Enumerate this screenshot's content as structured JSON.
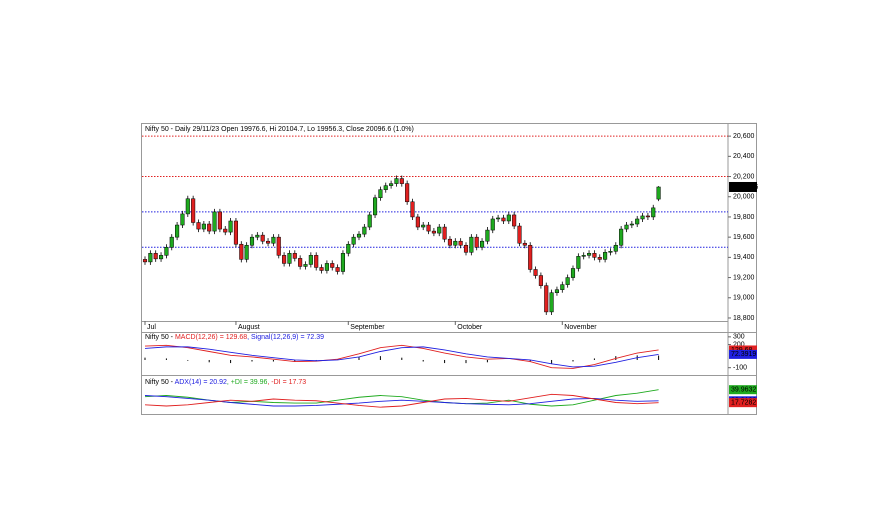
{
  "chart_data": [
    {
      "type": "candlestick",
      "title": "Nifty 50 - Daily 29/11/23 Open 19976.6, Hi 20104.7, Lo 19956.3, Close 20096.6 (1.0%)",
      "categories": [
        "Jul",
        null,
        null,
        null,
        null,
        null,
        null,
        null,
        null,
        null,
        null,
        null,
        null,
        null,
        null,
        null,
        null,
        "August",
        null,
        null,
        null,
        null,
        null,
        null,
        null,
        null,
        null,
        null,
        null,
        null,
        null,
        null,
        null,
        null,
        null,
        null,
        null,
        null,
        "September",
        null,
        null,
        null,
        null,
        null,
        null,
        null,
        null,
        null,
        null,
        null,
        null,
        null,
        null,
        null,
        null,
        null,
        null,
        null,
        "October",
        null,
        null,
        null,
        null,
        null,
        null,
        null,
        null,
        null,
        null,
        null,
        null,
        null,
        null,
        null,
        null,
        null,
        null,
        null,
        "November",
        null,
        null,
        null,
        null,
        null,
        null,
        null,
        null,
        null,
        null,
        null,
        null,
        null,
        null,
        null,
        null,
        null,
        null
      ],
      "open": [
        19380,
        19355,
        19440,
        19385,
        19420,
        19500,
        19600,
        19720,
        19830,
        19980,
        19745,
        19680,
        19730,
        19660,
        19850,
        19680,
        19650,
        19760,
        19530,
        19380,
        19520,
        19600,
        19620,
        19560,
        19540,
        19600,
        19420,
        19340,
        19440,
        19390,
        19310,
        19330,
        19420,
        19300,
        19270,
        19340,
        19300,
        19260,
        19440,
        19530,
        19600,
        19630,
        19700,
        19820,
        19990,
        20070,
        20110,
        20130,
        20180,
        20130,
        19950,
        19800,
        19700,
        19720,
        19660,
        19640,
        19700,
        19580,
        19520,
        19560,
        19520,
        19450,
        19600,
        19500,
        19560,
        19670,
        19780,
        19790,
        19760,
        19820,
        19710,
        19540,
        19520,
        19280,
        19220,
        19120,
        18860,
        19050,
        19080,
        19130,
        19200,
        19290,
        19410,
        19420,
        19440,
        19400,
        19380,
        19450,
        19460,
        19520,
        19680,
        19720,
        19730,
        19780,
        19810,
        19800,
        19976.6
      ],
      "high": [
        19410,
        19470,
        19470,
        19450,
        19530,
        19630,
        19750,
        19860,
        20010,
        20010,
        19775,
        19760,
        19760,
        19880,
        19880,
        19710,
        19790,
        19790,
        19560,
        19550,
        19630,
        19650,
        19650,
        19590,
        19630,
        19630,
        19450,
        19470,
        19470,
        19420,
        19360,
        19450,
        19450,
        19330,
        19370,
        19370,
        19330,
        19470,
        19560,
        19630,
        19660,
        19730,
        19850,
        20020,
        20100,
        20140,
        20160,
        20210,
        20210,
        20160,
        19980,
        19830,
        19750,
        19750,
        19690,
        19730,
        19730,
        19610,
        19590,
        19590,
        19550,
        19630,
        19630,
        19590,
        19700,
        19810,
        19820,
        19820,
        19850,
        19850,
        19740,
        19570,
        19550,
        19310,
        19250,
        19150,
        19080,
        19110,
        19160,
        19230,
        19320,
        19440,
        19450,
        19470,
        19470,
        19430,
        19480,
        19490,
        19550,
        19710,
        19750,
        19760,
        19810,
        19840,
        19840,
        19920,
        20104.7
      ],
      "low": [
        19325,
        19325,
        19355,
        19355,
        19390,
        19470,
        19570,
        19690,
        19800,
        19715,
        19650,
        19650,
        19630,
        19630,
        19650,
        19620,
        19620,
        19500,
        19350,
        19350,
        19490,
        19570,
        19530,
        19510,
        19510,
        19390,
        19310,
        19310,
        19360,
        19280,
        19280,
        19300,
        19270,
        19240,
        19240,
        19270,
        19230,
        19230,
        19410,
        19500,
        19570,
        19600,
        19670,
        19790,
        19960,
        20040,
        20080,
        20100,
        20100,
        19920,
        19770,
        19670,
        19670,
        19630,
        19610,
        19610,
        19550,
        19490,
        19490,
        19490,
        19420,
        19420,
        19470,
        19470,
        19530,
        19640,
        19750,
        19730,
        19730,
        19680,
        19510,
        19490,
        19250,
        19190,
        19090,
        18830,
        18830,
        19020,
        19050,
        19100,
        19170,
        19260,
        19380,
        19390,
        19370,
        19350,
        19350,
        19420,
        19430,
        19490,
        19650,
        19690,
        19700,
        19750,
        19770,
        19770,
        19956.3
      ],
      "close": [
        19355,
        19440,
        19385,
        19420,
        19500,
        19600,
        19720,
        19830,
        19980,
        19745,
        19680,
        19730,
        19660,
        19850,
        19680,
        19650,
        19760,
        19530,
        19380,
        19520,
        19600,
        19620,
        19560,
        19540,
        19600,
        19420,
        19340,
        19440,
        19390,
        19310,
        19330,
        19420,
        19300,
        19270,
        19340,
        19300,
        19260,
        19440,
        19530,
        19600,
        19630,
        19700,
        19820,
        19990,
        20070,
        20110,
        20130,
        20180,
        20130,
        19950,
        19800,
        19700,
        19720,
        19660,
        19640,
        19700,
        19580,
        19520,
        19560,
        19520,
        19450,
        19600,
        19500,
        19560,
        19670,
        19780,
        19790,
        19760,
        19820,
        19710,
        19540,
        19520,
        19280,
        19220,
        19120,
        18860,
        19050,
        19080,
        19130,
        19200,
        19290,
        19410,
        19420,
        19440,
        19400,
        19380,
        19450,
        19460,
        19520,
        19680,
        19720,
        19730,
        19780,
        19810,
        19800,
        19890,
        20096.6
      ],
      "last_label": "20,096.6",
      "up_color": "#1faa1f",
      "down_color": "#e02020",
      "ylim": [
        18770,
        20730
      ],
      "yticks": [
        {
          "value": 20600,
          "label": "20,600"
        },
        {
          "value": 20400,
          "label": "20,400"
        },
        {
          "value": 20200,
          "label": "20,200"
        },
        {
          "value": 20000,
          "label": "20,000"
        },
        {
          "value": 19800,
          "label": "19,800"
        },
        {
          "value": 19600,
          "label": "19,600"
        },
        {
          "value": 19400,
          "label": "19,400"
        },
        {
          "value": 19200,
          "label": "19,200"
        },
        {
          "value": 19000,
          "label": "19,000"
        },
        {
          "value": 18800,
          "label": "18,800"
        }
      ],
      "hlines": [
        {
          "value": 20600,
          "color": "#e02020"
        },
        {
          "value": 20200,
          "color": "#e02020"
        },
        {
          "value": 19850,
          "color": "#2020e0"
        },
        {
          "value": 19500,
          "color": "#2020e0"
        }
      ]
    },
    {
      "type": "line",
      "title_parts": [
        {
          "text": "Nifty 50 - ",
          "color": "#000000"
        },
        {
          "text": "MACD(12,26) = 129.68",
          "color": "#e02020"
        },
        {
          "text": ", Signal(12,26,9) = 72.39",
          "color": "#2020e0"
        }
      ],
      "x": [
        0,
        4,
        8,
        12,
        16,
        20,
        24,
        28,
        32,
        36,
        40,
        44,
        48,
        52,
        56,
        60,
        64,
        68,
        72,
        76,
        80,
        84,
        88,
        92,
        96
      ],
      "series": [
        {
          "color": "#000000",
          "type": "bar",
          "values": [
            30,
            20,
            -10,
            -30,
            -40,
            -20,
            -20,
            -20,
            -5,
            10,
            40,
            50,
            30,
            -20,
            -40,
            -40,
            -30,
            0,
            -20,
            -50,
            -20,
            20,
            50,
            60,
            57.29
          ]
        },
        {
          "color": "#e02020",
          "values": [
            180,
            190,
            160,
            110,
            60,
            40,
            10,
            -20,
            -15,
            10,
            80,
            160,
            190,
            150,
            90,
            40,
            10,
            20,
            -20,
            -100,
            -110,
            -60,
            20,
            90,
            129.68
          ]
        },
        {
          "color": "#2020e0",
          "values": [
            150,
            170,
            170,
            140,
            100,
            60,
            30,
            0,
            -10,
            0,
            40,
            110,
            160,
            170,
            130,
            80,
            40,
            20,
            0,
            -50,
            -90,
            -80,
            -30,
            30,
            72.3919
          ]
        }
      ],
      "ylim": [
        -130,
        350
      ],
      "yticks": [
        300,
        200,
        -100
      ]
    },
    {
      "type": "line",
      "title_parts": [
        {
          "text": "Nifty 50 - ",
          "color": "#000000"
        },
        {
          "text": "ADX(14) = 20.92",
          "color": "#2020e0"
        },
        {
          "text": ", +DI = 39.96",
          "color": "#1faa1f"
        },
        {
          "text": ", -DI = 17.73",
          "color": "#e02020"
        }
      ],
      "x": [
        0,
        4,
        8,
        12,
        16,
        20,
        24,
        28,
        32,
        36,
        40,
        44,
        48,
        52,
        56,
        60,
        64,
        68,
        72,
        76,
        80,
        84,
        88,
        92,
        96
      ],
      "series": [
        {
          "color": "#1faa1f",
          "values": [
            28,
            30,
            27,
            22,
            18,
            20,
            18,
            17,
            17,
            22,
            27,
            30,
            28,
            22,
            18,
            16,
            17,
            22,
            15,
            12,
            14,
            22,
            30,
            34,
            39.9632
          ]
        },
        {
          "color": "#2020e0",
          "values": [
            30,
            28,
            25,
            22,
            18,
            15,
            12,
            12,
            13,
            15,
            17,
            20,
            22,
            20,
            18,
            16,
            15,
            14,
            16,
            20,
            24,
            25,
            22,
            20,
            20.9198
          ]
        },
        {
          "color": "#e02020",
          "values": [
            14,
            12,
            14,
            18,
            22,
            20,
            24,
            22,
            21,
            17,
            13,
            10,
            12,
            18,
            24,
            25,
            22,
            20,
            26,
            32,
            30,
            24,
            18,
            16,
            17.7282
          ]
        }
      ],
      "ylim": [
        0,
        60
      ]
    }
  ]
}
